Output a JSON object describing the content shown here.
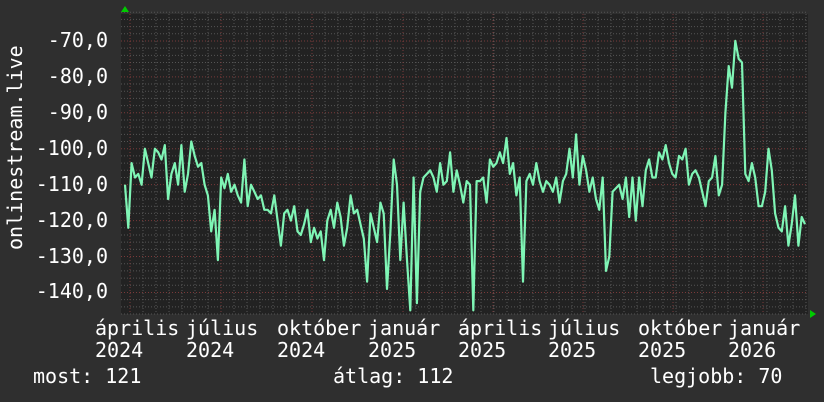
{
  "chart_data": {
    "type": "line",
    "title": "",
    "ylabel": "onlinestream.live",
    "xlabel": "",
    "ylim": [
      -146,
      -62.5
    ],
    "y_ticks": [
      "-70,0",
      "-80,0",
      "-90,0",
      "-100,0",
      "-110,0",
      "-120,0",
      "-130,0",
      "-140,0"
    ],
    "y_tick_values": [
      -70,
      -80,
      -90,
      -100,
      -110,
      -120,
      -130,
      -140
    ],
    "x_ticks": [
      "április 2024",
      "július 2024",
      "október 2024",
      "január 2025",
      "április 2025",
      "július 2025",
      "október 2025",
      "január 2026"
    ],
    "grid": true,
    "line_color": "#7ff5b5",
    "series": [
      {
        "values": [
          -110,
          -122,
          -104,
          -108,
          -107,
          -110,
          -100,
          -104,
          -108,
          -100,
          -101,
          -103,
          -99,
          -114,
          -107,
          -104,
          -110,
          -99,
          -112,
          -107,
          -98,
          -102,
          -105,
          -104,
          -110,
          -113,
          -123,
          -117,
          -131,
          -108,
          -111,
          -107,
          -112,
          -110,
          -113,
          -115,
          -103,
          -116,
          -110,
          -112,
          -114,
          -113,
          -117,
          -117,
          -118,
          -113,
          -120,
          -127,
          -118,
          -117,
          -120,
          -116,
          -123,
          -124,
          -121,
          -117,
          -126,
          -122,
          -125,
          -123,
          -131,
          -120,
          -117,
          -122,
          -115,
          -119,
          -127,
          -122,
          -113,
          -118,
          -117,
          -121,
          -125,
          -137,
          -118,
          -122,
          -126,
          -115,
          -118,
          -139,
          -123,
          -103,
          -110,
          -131,
          -115,
          -131,
          -145,
          -108,
          -143,
          -112,
          -108,
          -107,
          -106,
          -108,
          -112,
          -104,
          -110,
          -109,
          -101,
          -112,
          -106,
          -110,
          -115,
          -109,
          -110,
          -145,
          -109,
          -109,
          -108,
          -115,
          -103,
          -105,
          -104,
          -101,
          -104,
          -97,
          -107,
          -104,
          -113,
          -108,
          -137,
          -109,
          -107,
          -110,
          -104,
          -109,
          -112,
          -109,
          -110,
          -112,
          -108,
          -115,
          -109,
          -107,
          -100,
          -108,
          -96,
          -110,
          -102,
          -106,
          -112,
          -108,
          -114,
          -117,
          -108,
          -134,
          -130,
          -112,
          -111,
          -110,
          -114,
          -108,
          -119,
          -108,
          -120,
          -108,
          -116,
          -106,
          -103,
          -108,
          -108,
          -101,
          -103,
          -99,
          -104,
          -107,
          -108,
          -102,
          -103,
          -100,
          -110,
          -107,
          -106,
          -108,
          -112,
          -116,
          -109,
          -108,
          -102,
          -113,
          -110,
          -90,
          -77,
          -83,
          -70,
          -75,
          -76,
          -107,
          -109,
          -104,
          -108,
          -116,
          -116,
          -112,
          -100,
          -106,
          -118,
          -122,
          -123,
          -116,
          -127,
          -121,
          -113,
          -127,
          -119,
          -121
        ]
      }
    ]
  },
  "footer": {
    "current": "most: 121",
    "average": "átlag: 112",
    "best": "legjobb: 70"
  },
  "colors": {
    "background": "#2f2f2f",
    "plot": "#222222",
    "grid_minor": "#555555",
    "grid_major": "#7a3a3a",
    "arrow": "#00cc00"
  }
}
